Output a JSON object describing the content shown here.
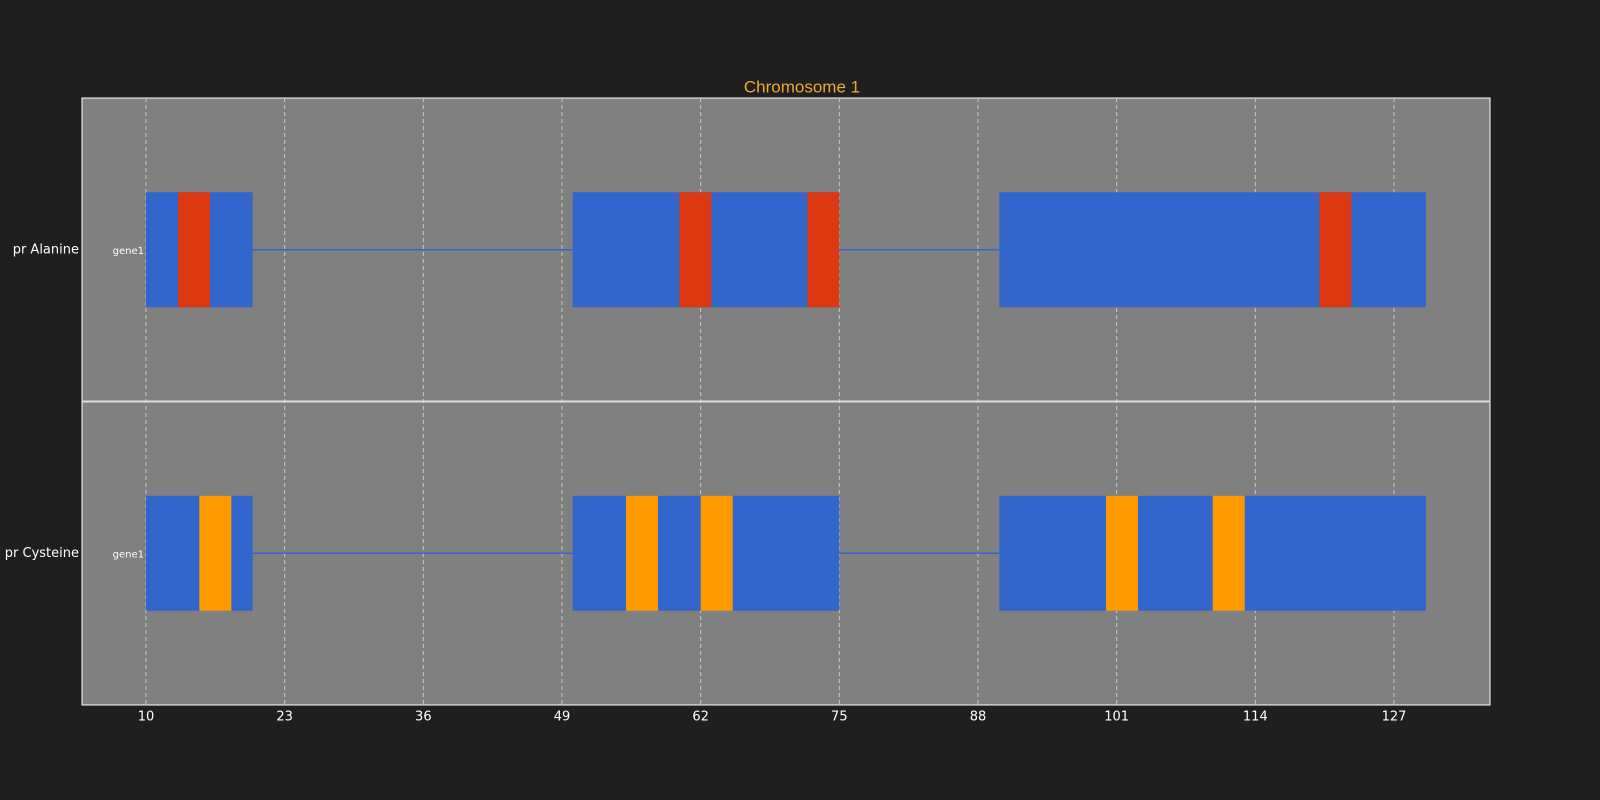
{
  "chart_data": {
    "type": "gene-track",
    "title": "Chromosome 1",
    "xlim": [
      4,
      136
    ],
    "xticks": [
      10,
      23,
      36,
      49,
      62,
      75,
      88,
      101,
      114,
      127
    ],
    "grid": true,
    "exon_color": "#3366cc",
    "tracks": [
      {
        "name": "pr Alanine",
        "gene": "gene1",
        "feature_color": "#dc3912",
        "exons": [
          [
            10,
            20
          ],
          [
            50,
            75
          ],
          [
            90,
            130
          ]
        ],
        "features": [
          [
            13,
            16
          ],
          [
            60,
            63
          ],
          [
            72,
            75
          ],
          [
            120,
            123
          ]
        ]
      },
      {
        "name": "pr Cysteine",
        "gene": "gene1",
        "feature_color": "#ff9900",
        "exons": [
          [
            10,
            20
          ],
          [
            50,
            75
          ],
          [
            90,
            130
          ]
        ],
        "features": [
          [
            15,
            18
          ],
          [
            55,
            58
          ],
          [
            62,
            65
          ],
          [
            100,
            103
          ],
          [
            110,
            113
          ]
        ]
      }
    ]
  }
}
